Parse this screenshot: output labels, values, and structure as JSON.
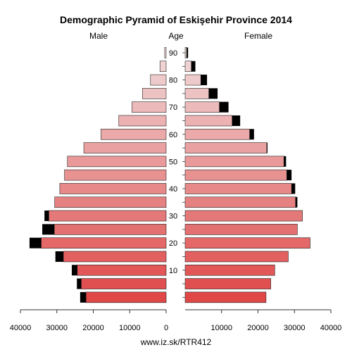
{
  "chart_data": {
    "type": "bar",
    "orientation": "horizontal",
    "title": "Demographic Pyramid of Eskişehir Province 2014",
    "left_label": "Male",
    "center_label": "Age",
    "right_label": "Female",
    "source": "www.iz.sk/RTR412",
    "age_groups": [
      "0-4",
      "5-9",
      "10-14",
      "15-19",
      "20-24",
      "25-29",
      "30-34",
      "35-39",
      "40-44",
      "45-49",
      "50-54",
      "55-59",
      "60-64",
      "65-69",
      "70-74",
      "75-79",
      "80-84",
      "85-89",
      "90+"
    ],
    "age_ticks": [
      10,
      20,
      30,
      40,
      50,
      60,
      70,
      80,
      90
    ],
    "x_ticks": [
      40000,
      30000,
      20000,
      10000,
      0,
      10000,
      20000,
      30000,
      40000
    ],
    "xlim": [
      0,
      40000
    ],
    "series": [
      {
        "name": "Male",
        "values": [
          22000,
          23300,
          24400,
          28200,
          34300,
          30700,
          32200,
          30600,
          29200,
          27900,
          27100,
          22600,
          17900,
          13000,
          9400,
          6500,
          4300,
          1700,
          400
        ],
        "excess": [
          1600,
          1200,
          1500,
          2200,
          3200,
          3300,
          1200,
          0,
          0,
          0,
          0,
          0,
          0,
          0,
          0,
          0,
          0,
          0,
          0
        ]
      },
      {
        "name": "Female",
        "values": [
          22200,
          23500,
          24600,
          28300,
          34300,
          30800,
          32200,
          30300,
          29200,
          27900,
          27100,
          22400,
          17700,
          12900,
          9400,
          6500,
          4300,
          1700,
          400
        ],
        "excess": [
          0,
          0,
          0,
          0,
          0,
          0,
          0,
          500,
          1000,
          1300,
          600,
          200,
          1200,
          2200,
          2500,
          2400,
          1700,
          1100,
          400
        ]
      }
    ],
    "colors": {
      "young": "#e04848",
      "old": "#f0dada",
      "excess": "#000000",
      "stroke": "#222222"
    }
  }
}
